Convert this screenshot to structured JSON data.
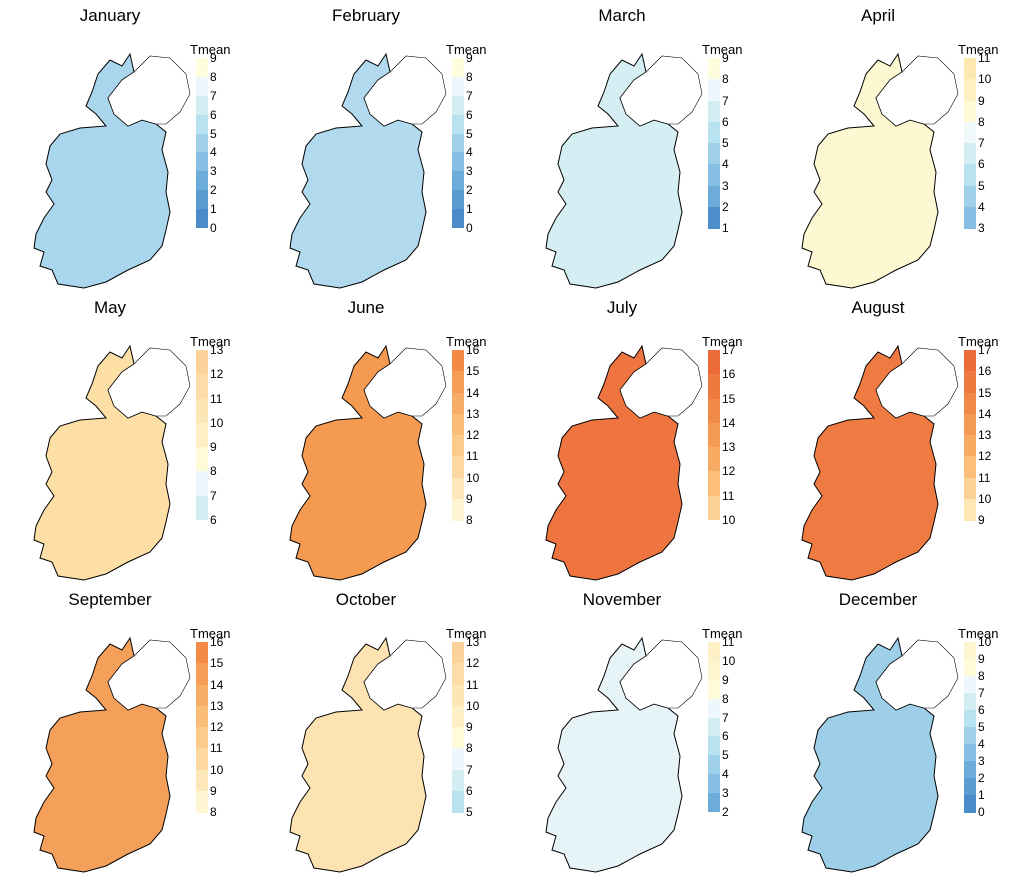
{
  "legend_title": "Tmean",
  "panels": [
    {
      "month": "January",
      "ticks": [
        "9",
        "8",
        "7",
        "6",
        "5",
        "4",
        "3",
        "2",
        "1",
        "0"
      ],
      "colors": [
        "#fefedd",
        "#eef7fb",
        "#d3eef3",
        "#b9e2f0",
        "#9fd0ea",
        "#86bfe3",
        "#6dacda",
        "#5a9bd2",
        "#4a8bca"
      ],
      "fill": "#a9d6ec"
    },
    {
      "month": "February",
      "ticks": [
        "9",
        "8",
        "7",
        "6",
        "5",
        "4",
        "3",
        "2",
        "1",
        "0"
      ],
      "colors": [
        "#fefedd",
        "#eef7fb",
        "#d3eef3",
        "#b9e2f0",
        "#9fd0ea",
        "#86bfe3",
        "#6dacda",
        "#5a9bd2",
        "#4a8bca"
      ],
      "fill": "#b1daee"
    },
    {
      "month": "March",
      "ticks": [
        "9",
        "8",
        "7",
        "6",
        "5",
        "4",
        "3",
        "2",
        "1"
      ],
      "colors": [
        "#fefedd",
        "#eef7fb",
        "#d3eef3",
        "#b9e2f0",
        "#9fd0ea",
        "#86bfe3",
        "#6dacda",
        "#4f90cc"
      ],
      "fill": "#d4eef4"
    },
    {
      "month": "April",
      "ticks": [
        "11",
        "10",
        "9",
        "8",
        "7",
        "6",
        "5",
        "4",
        "3"
      ],
      "colors": [
        "#fde8b0",
        "#fdf1c3",
        "#fefad6",
        "#f1f8fa",
        "#d3eef3",
        "#b9e2f0",
        "#9fd0ea",
        "#86bfe3"
      ],
      "fill": "#fdf8d2"
    },
    {
      "month": "May",
      "ticks": [
        "13",
        "12",
        "11",
        "10",
        "9",
        "8",
        "7",
        "6"
      ],
      "colors": [
        "#fcd29b",
        "#fddca8",
        "#fde6b6",
        "#fdf0c6",
        "#fefbd8",
        "#eef7fb",
        "#d3eef3"
      ],
      "fill": "#fddfa6"
    },
    {
      "month": "June",
      "ticks": [
        "16",
        "15",
        "14",
        "13",
        "12",
        "11",
        "10",
        "9",
        "8"
      ],
      "colors": [
        "#f38a45",
        "#f69c55",
        "#f8ad66",
        "#fabd78",
        "#fccb8c",
        "#fdd9a1",
        "#fde7b8",
        "#fef6d2"
      ],
      "fill": "#f59a51"
    },
    {
      "month": "July",
      "ticks": [
        "17",
        "16",
        "15",
        "14",
        "13",
        "12",
        "11",
        "10"
      ],
      "colors": [
        "#ec6a3a",
        "#ef7a40",
        "#f28a47",
        "#f59a52",
        "#f8ac63",
        "#fbbf7a",
        "#fcd396"
      ],
      "fill": "#ee7440"
    },
    {
      "month": "August",
      "ticks": [
        "17",
        "16",
        "15",
        "14",
        "13",
        "12",
        "11",
        "10",
        "9"
      ],
      "colors": [
        "#ec6a3a",
        "#ef7a40",
        "#f28a47",
        "#f59a52",
        "#f8ac63",
        "#fbbf7a",
        "#fcd396",
        "#fee6b5"
      ],
      "fill": "#f07b42"
    },
    {
      "month": "September",
      "ticks": [
        "16",
        "15",
        "14",
        "13",
        "12",
        "11",
        "10",
        "9",
        "8"
      ],
      "colors": [
        "#f38a45",
        "#f69c55",
        "#f8ad66",
        "#fabd78",
        "#fccb8c",
        "#fdd9a1",
        "#fde7b8",
        "#fef6d2"
      ],
      "fill": "#f5a05a"
    },
    {
      "month": "October",
      "ticks": [
        "13",
        "12",
        "11",
        "10",
        "9",
        "8",
        "7",
        "6",
        "5"
      ],
      "colors": [
        "#fcd29b",
        "#fddca8",
        "#fde6b6",
        "#fdf0c6",
        "#fefbd8",
        "#eef7fb",
        "#d3eef3",
        "#b9e2f0"
      ],
      "fill": "#fde3b1"
    },
    {
      "month": "November",
      "ticks": [
        "11",
        "10",
        "9",
        "8",
        "7",
        "6",
        "5",
        "4",
        "3",
        "2"
      ],
      "colors": [
        "#fdf0c6",
        "#fdf5cf",
        "#fefbd8",
        "#eef7fb",
        "#d3eef3",
        "#b9e2f0",
        "#9fd0ea",
        "#86bfe3",
        "#6dacda"
      ],
      "fill": "#e6f4f8"
    },
    {
      "month": "December",
      "ticks": [
        "10",
        "9",
        "8",
        "7",
        "6",
        "5",
        "4",
        "3",
        "2",
        "1",
        "0"
      ],
      "colors": [
        "#fdf5cf",
        "#fefbd8",
        "#eef7fb",
        "#d3eef3",
        "#b9e2f0",
        "#9fd0ea",
        "#86bfe3",
        "#6dacda",
        "#5a9bd2",
        "#4a8bca"
      ],
      "fill": "#9dcfe8"
    }
  ]
}
